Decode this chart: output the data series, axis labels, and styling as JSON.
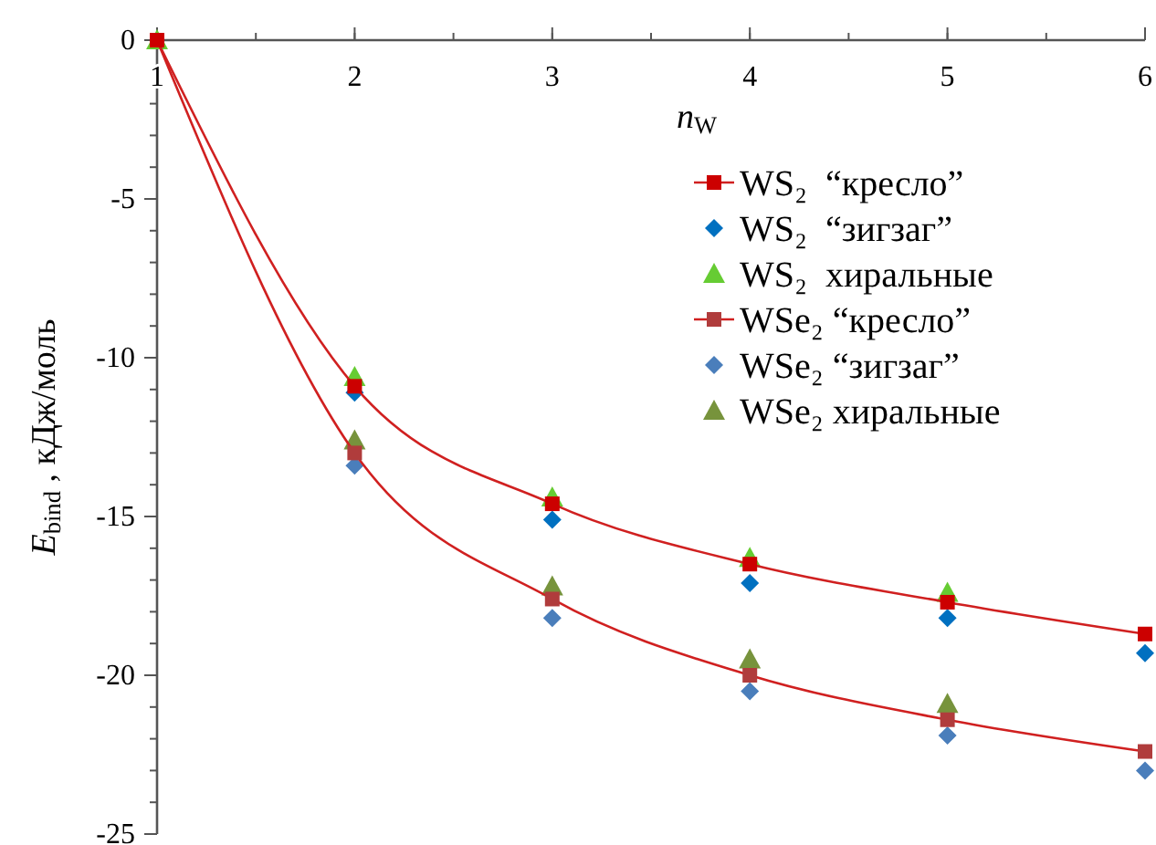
{
  "chart_data": {
    "type": "scatter",
    "xlabel": "n$_{W}$",
    "ylabel": "E$_{bind}$ , кДж/моль",
    "xlim": [
      1,
      6
    ],
    "xticks": [
      1,
      2,
      3,
      4,
      5,
      6
    ],
    "ylim": [
      -25,
      0
    ],
    "yticks": [
      -25,
      -20,
      -15,
      -10,
      -5,
      0
    ],
    "legend": "right",
    "x": [
      1,
      2,
      3,
      4,
      5,
      6
    ],
    "series": [
      {
        "name": "WS₂  “кресло”",
        "type": "line",
        "marker": "square",
        "color": "#cc0000",
        "values": [
          0,
          -10.9,
          -14.6,
          -16.5,
          -17.7,
          -18.7
        ]
      },
      {
        "name": "WS₂  “зигзаг”",
        "marker": "diamond",
        "color": "#0070c0",
        "values": [
          null,
          -11.1,
          -15.1,
          -17.1,
          -18.2,
          -19.3
        ]
      },
      {
        "name": "WS₂  хиральные",
        "marker": "triangle",
        "color": "#66cc33",
        "values": [
          0,
          -10.6,
          -14.4,
          -16.3,
          -17.4,
          null
        ]
      },
      {
        "name": "WSe₂ “кресло”",
        "type": "line",
        "marker": "square",
        "color": "#b03c3c",
        "values": [
          0,
          -13.0,
          -17.6,
          -20.0,
          -21.4,
          -22.4
        ]
      },
      {
        "name": "WSe₂ “зигзаг”",
        "marker": "diamond",
        "color": "#4a7ebb",
        "values": [
          null,
          -13.4,
          -18.2,
          -20.5,
          -21.9,
          -23.0
        ]
      },
      {
        "name": "WSe₂ хиральные",
        "marker": "triangle",
        "color": "#77933c",
        "values": [
          null,
          -12.6,
          -17.2,
          -19.5,
          -20.9,
          null
        ]
      }
    ]
  }
}
